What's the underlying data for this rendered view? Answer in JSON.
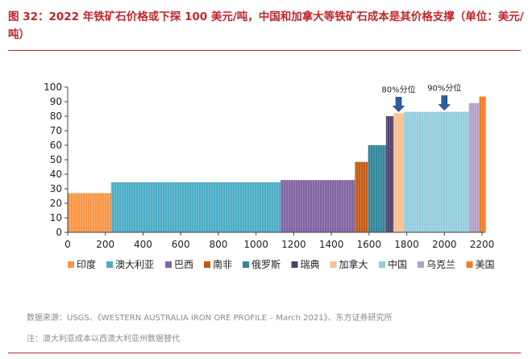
{
  "header": {
    "title": "图 32：2022 年铁矿石价格或下探 100 美元/吨，中国和加拿大等铁矿石成本是其价格支撑（单位：美元/吨）"
  },
  "footer": {
    "source": "数据来源：USGS、《WESTERN AUSTRALIA IRON ORE PROFILE – March 2021》、东方证券研究所",
    "note": "注：澳大利亚成本以西澳大利亚州数据替代"
  },
  "chart_data": {
    "type": "bar",
    "title": "",
    "xlabel": "",
    "ylabel": "",
    "xlim": [
      0,
      2200
    ],
    "ylim": [
      0,
      100
    ],
    "x_ticks": [
      0,
      200,
      400,
      600,
      800,
      1000,
      1200,
      1400,
      1600,
      1800,
      2000,
      2200
    ],
    "y_ticks": [
      0,
      10,
      20,
      30,
      40,
      50,
      60,
      70,
      80,
      90,
      100
    ],
    "grid": false,
    "legend_position": "bottom",
    "series": [
      {
        "name": "印度",
        "x_start": 0,
        "x_end": 230,
        "value": 27,
        "color": "#f79646"
      },
      {
        "name": "澳大利亚",
        "x_start": 230,
        "x_end": 1130,
        "value": 34.5,
        "color": "#4bacc6"
      },
      {
        "name": "巴西",
        "x_start": 1130,
        "x_end": 1525,
        "value": 36,
        "color": "#8064a2"
      },
      {
        "name": "南非",
        "x_start": 1525,
        "x_end": 1595,
        "value": 48.5,
        "color": "#c55a11"
      },
      {
        "name": "俄罗斯",
        "x_start": 1595,
        "x_end": 1690,
        "value": 60,
        "color": "#31859c"
      },
      {
        "name": "瑞典",
        "x_start": 1690,
        "x_end": 1730,
        "value": 80,
        "color": "#4f3f6b"
      },
      {
        "name": "加拿大",
        "x_start": 1730,
        "x_end": 1785,
        "value": 82,
        "color": "#fabf8f"
      },
      {
        "name": "中国",
        "x_start": 1785,
        "x_end": 2130,
        "value": 83,
        "color": "#92cddc"
      },
      {
        "name": "乌克兰",
        "x_start": 2130,
        "x_end": 2185,
        "value": 89,
        "color": "#b1a0c7"
      },
      {
        "name": "美国",
        "x_start": 2185,
        "x_end": 2220,
        "value": 93.5,
        "color": "#f47b20"
      }
    ],
    "annotations": [
      {
        "text": "80%分位",
        "x": 1757,
        "y": 82
      },
      {
        "text": "90%分位",
        "x": 2000,
        "y": 83
      }
    ]
  }
}
